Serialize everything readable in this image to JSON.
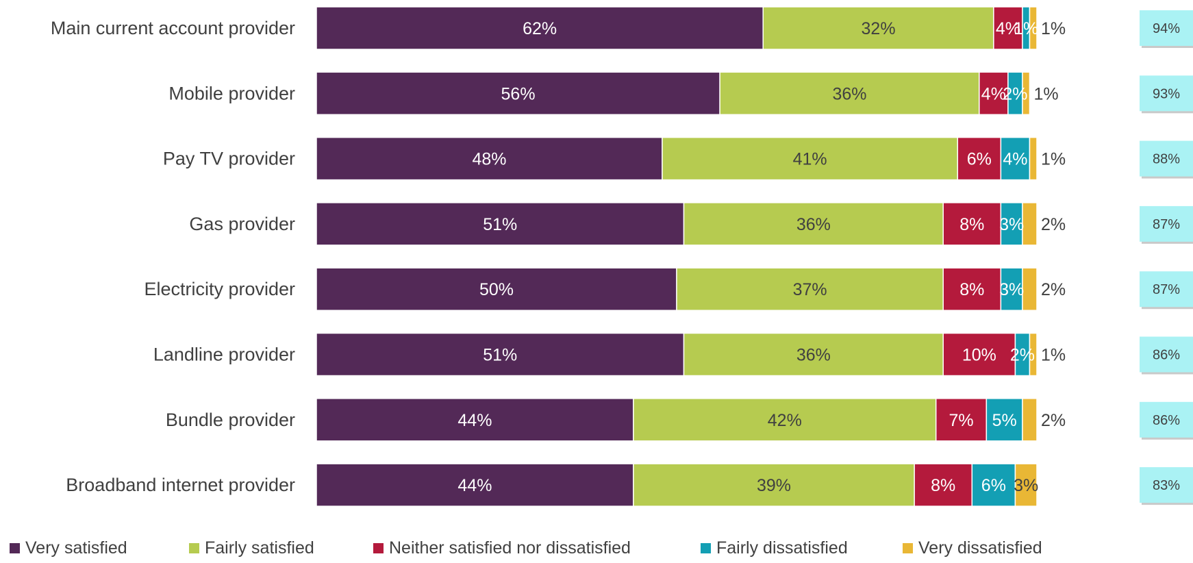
{
  "chart_data": {
    "type": "bar",
    "orientation": "horizontal",
    "stacked": true,
    "normalized_percent": true,
    "title": "",
    "xlabel": "",
    "ylabel": "",
    "xlim": [
      0,
      100
    ],
    "grid": false,
    "legend": {
      "position": "bottom",
      "entries": [
        "Very satisfied",
        "Fairly satisfied",
        "Neither satisfied nor dissatisfied",
        "Fairly dissatisfied",
        "Very dissatisfied"
      ]
    },
    "categories": [
      "Main current account provider",
      "Mobile provider",
      "Pay TV provider",
      "Gas provider",
      "Electricity provider",
      "Landline provider",
      "Bundle provider",
      "Broadband internet provider"
    ],
    "series": [
      {
        "name": "Very satisfied",
        "color": "#532957",
        "label_color": "#ffffff",
        "values": [
          62,
          56,
          48,
          51,
          50,
          51,
          44,
          44
        ]
      },
      {
        "name": "Fairly satisfied",
        "color": "#b6cb50",
        "label_color": "#404040",
        "values": [
          32,
          36,
          41,
          36,
          37,
          36,
          42,
          39
        ]
      },
      {
        "name": "Neither satisfied nor dissatisfied",
        "color": "#b41a3c",
        "label_color": "#ffffff",
        "values": [
          4,
          4,
          6,
          8,
          8,
          10,
          7,
          8
        ]
      },
      {
        "name": "Fairly dissatisfied",
        "color": "#139fb4",
        "label_color": "#ffffff",
        "values": [
          1,
          2,
          4,
          3,
          3,
          2,
          5,
          6
        ]
      },
      {
        "name": "Very dissatisfied",
        "color": "#e9b735",
        "label_color": "#404040",
        "values": [
          1,
          1,
          1,
          2,
          2,
          1,
          2,
          3
        ]
      }
    ],
    "net_satisfied": {
      "box_color": "#aaf2f4",
      "values": [
        "94%",
        "93%",
        "88%",
        "87%",
        "87%",
        "86%",
        "86%",
        "83%"
      ]
    }
  }
}
